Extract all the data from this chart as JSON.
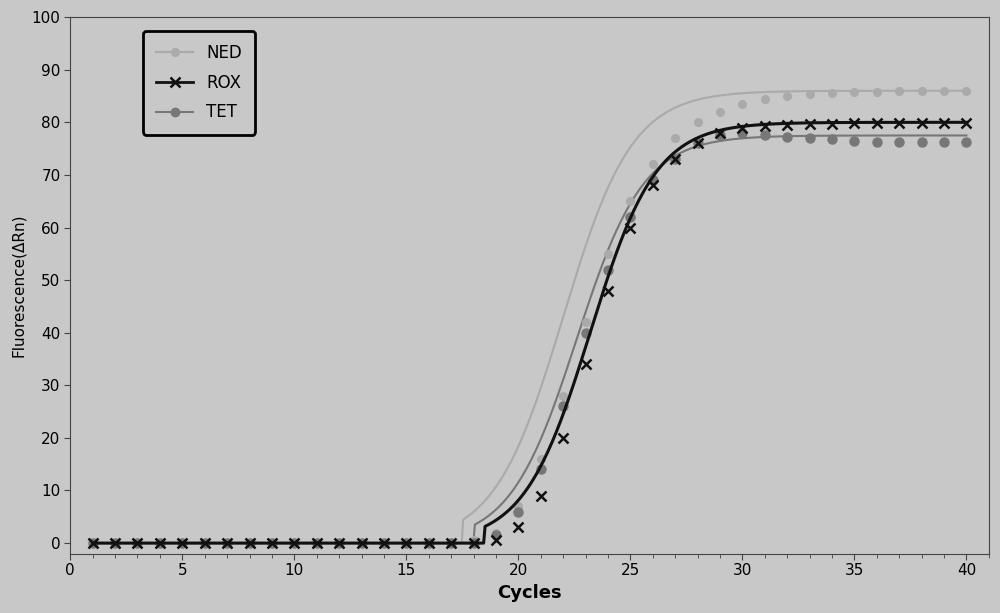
{
  "title": "",
  "xlabel": "Cycles",
  "ylabel": "Fluorescence(ΔRn)",
  "xlim": [
    1,
    41
  ],
  "ylim": [
    -2,
    100
  ],
  "xticks": [
    0,
    5,
    10,
    15,
    20,
    25,
    30,
    35,
    40
  ],
  "yticks": [
    0,
    10,
    20,
    30,
    40,
    50,
    60,
    70,
    80,
    90,
    100
  ],
  "background_color": "#c8c8c8",
  "plot_bg_color": "#c8c8c8",
  "ned_color": "#aaaaaa",
  "rox_color": "#111111",
  "tet_color": "#777777",
  "ned_label": "NED",
  "rox_label": "ROX",
  "tet_label": "TET",
  "cycles": [
    1,
    2,
    3,
    4,
    5,
    6,
    7,
    8,
    9,
    10,
    11,
    12,
    13,
    14,
    15,
    16,
    17,
    18,
    19,
    20,
    21,
    22,
    23,
    24,
    25,
    26,
    27,
    28,
    29,
    30,
    31,
    32,
    33,
    34,
    35,
    36,
    37,
    38,
    39,
    40
  ],
  "ned_values": [
    0,
    0,
    0,
    0,
    0,
    0,
    0,
    0,
    0,
    0,
    0,
    0,
    0,
    0,
    0,
    0,
    0,
    0.5,
    2,
    7,
    16,
    28,
    42,
    55,
    65,
    72,
    77,
    80,
    82,
    83.5,
    84.5,
    85,
    85.3,
    85.5,
    85.7,
    85.8,
    86,
    86,
    86,
    86
  ],
  "rox_values": [
    0,
    0,
    0,
    0,
    0,
    0,
    0,
    0,
    0,
    0,
    0,
    0,
    0,
    0,
    0,
    0,
    0,
    0,
    0.5,
    3,
    9,
    20,
    34,
    48,
    60,
    68,
    73,
    76,
    78,
    79,
    79.3,
    79.5,
    79.6,
    79.7,
    79.8,
    79.8,
    79.8,
    79.8,
    79.8,
    79.8
  ],
  "tet_values": [
    0,
    0,
    0,
    0,
    0,
    0,
    0,
    0,
    0,
    0,
    0,
    0,
    0,
    0,
    0,
    0,
    0,
    0,
    1.5,
    6,
    14,
    26,
    40,
    52,
    62,
    69,
    73,
    76,
    77.5,
    78,
    77.5,
    77.2,
    77,
    76.8,
    76.5,
    76.3,
    76.2,
    76.2,
    76.2,
    76.2
  ],
  "ned_sigmoid": [
    86,
    22.0,
    0.65
  ],
  "rox_sigmoid": [
    80,
    23.2,
    0.68
  ],
  "tet_sigmoid": [
    77.5,
    22.6,
    0.67
  ]
}
